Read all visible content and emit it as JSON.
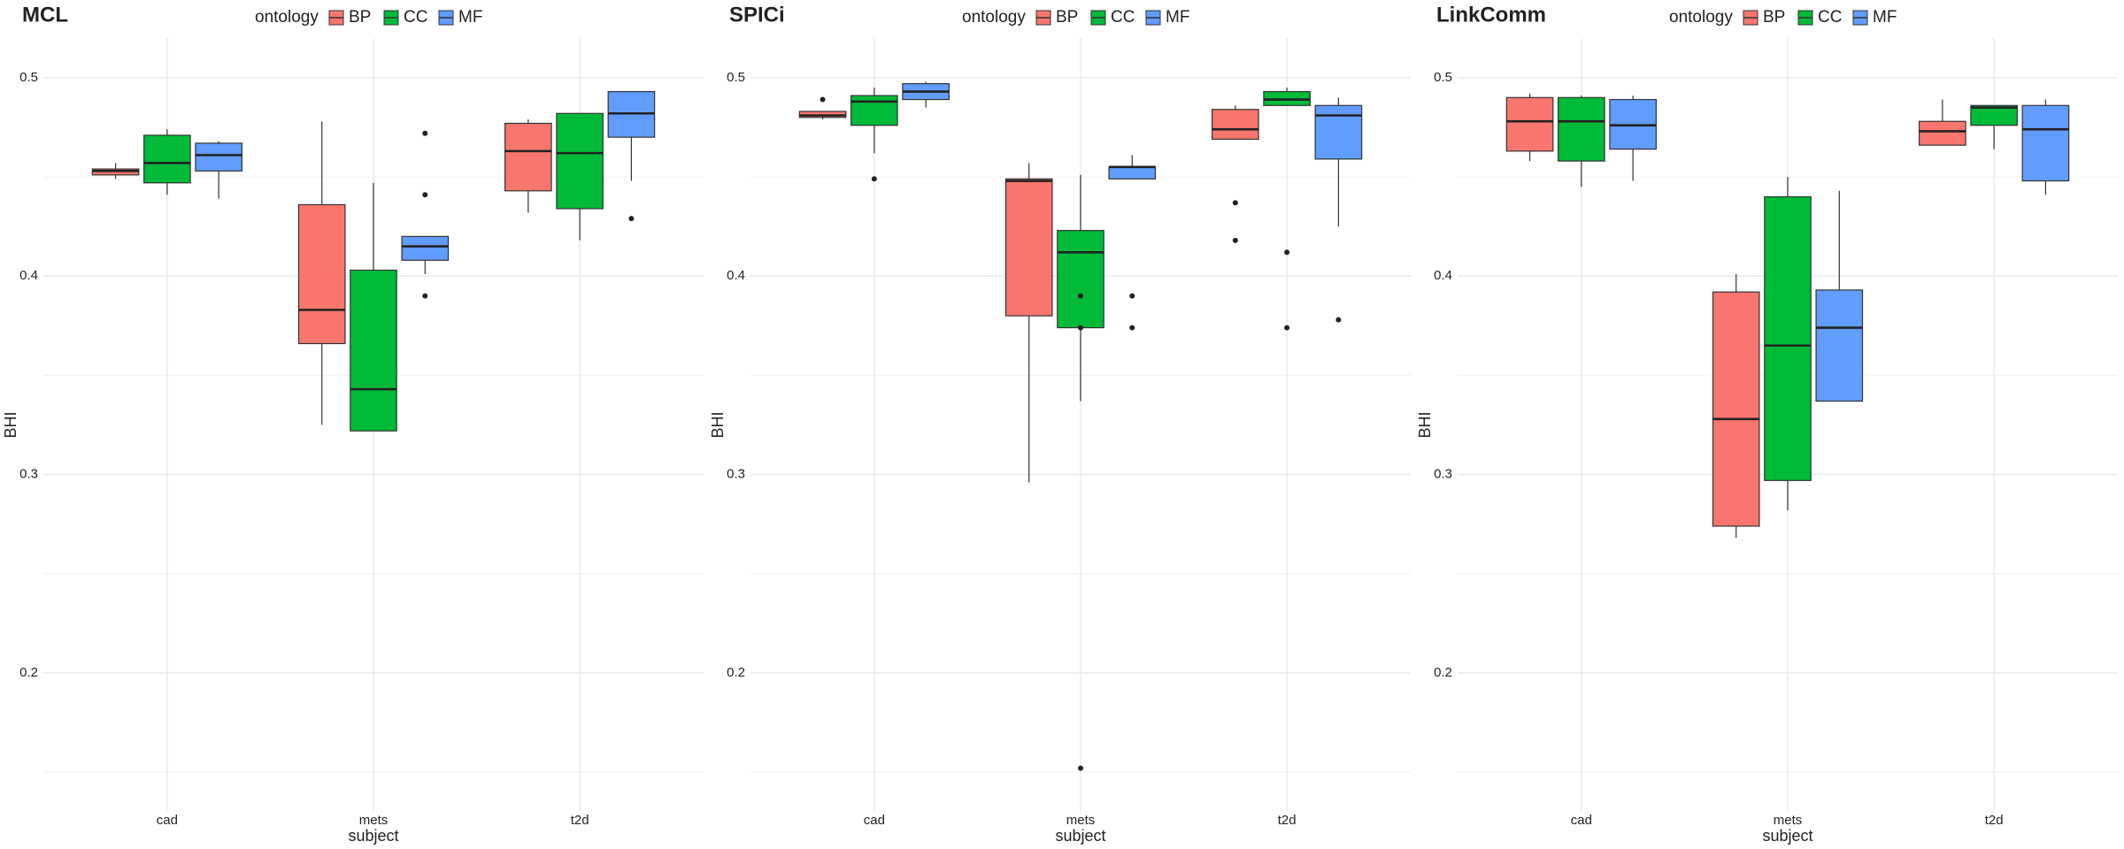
{
  "chart_data": [
    {
      "type": "box",
      "title": "MCL",
      "x_label": "subject",
      "y_label": "BHI",
      "legend_title": "ontology",
      "legend": "top",
      "categories": [
        "cad",
        "mets",
        "t2d"
      ],
      "ylim": [
        0.13,
        0.52
      ],
      "yticks": [
        0.2,
        0.3,
        0.4,
        0.5
      ],
      "grid": true,
      "series": [
        {
          "name": "BP",
          "color": "#F8766D",
          "boxes": [
            {
              "min": 0.449,
              "q1": 0.451,
              "median": 0.453,
              "q3": 0.454,
              "max": 0.457,
              "outliers": []
            },
            {
              "min": 0.325,
              "q1": 0.366,
              "median": 0.383,
              "q3": 0.436,
              "max": 0.478,
              "outliers": []
            },
            {
              "min": 0.432,
              "q1": 0.443,
              "median": 0.463,
              "q3": 0.477,
              "max": 0.479,
              "outliers": []
            }
          ]
        },
        {
          "name": "CC",
          "color": "#00BA38",
          "boxes": [
            {
              "min": 0.441,
              "q1": 0.447,
              "median": 0.457,
              "q3": 0.471,
              "max": 0.474,
              "outliers": []
            },
            {
              "min": 0.322,
              "q1": 0.322,
              "median": 0.343,
              "q3": 0.403,
              "max": 0.447,
              "outliers": []
            },
            {
              "min": 0.418,
              "q1": 0.434,
              "median": 0.462,
              "q3": 0.482,
              "max": 0.482,
              "outliers": []
            }
          ]
        },
        {
          "name": "MF",
          "color": "#619CFF",
          "boxes": [
            {
              "min": 0.439,
              "q1": 0.453,
              "median": 0.461,
              "q3": 0.467,
              "max": 0.468,
              "outliers": []
            },
            {
              "min": 0.401,
              "q1": 0.408,
              "median": 0.415,
              "q3": 0.42,
              "max": 0.42,
              "outliers": [
                0.472,
                0.441,
                0.39
              ]
            },
            {
              "min": 0.448,
              "q1": 0.47,
              "median": 0.482,
              "q3": 0.493,
              "max": 0.493,
              "outliers": [
                0.429
              ]
            }
          ]
        }
      ]
    },
    {
      "type": "box",
      "title": "SPICi",
      "x_label": "subject",
      "y_label": "BHI",
      "legend_title": "ontology",
      "legend": "top",
      "categories": [
        "cad",
        "mets",
        "t2d"
      ],
      "ylim": [
        0.13,
        0.52
      ],
      "yticks": [
        0.2,
        0.3,
        0.4,
        0.5
      ],
      "grid": true,
      "series": [
        {
          "name": "BP",
          "color": "#F8766D",
          "boxes": [
            {
              "min": 0.479,
              "q1": 0.48,
              "median": 0.481,
              "q3": 0.483,
              "max": 0.483,
              "outliers": [
                0.489
              ]
            },
            {
              "min": 0.296,
              "q1": 0.38,
              "median": 0.448,
              "q3": 0.449,
              "max": 0.457,
              "outliers": []
            },
            {
              "min": 0.469,
              "q1": 0.469,
              "median": 0.474,
              "q3": 0.484,
              "max": 0.486,
              "outliers": [
                0.437,
                0.418
              ]
            }
          ]
        },
        {
          "name": "CC",
          "color": "#00BA38",
          "boxes": [
            {
              "min": 0.462,
              "q1": 0.476,
              "median": 0.488,
              "q3": 0.491,
              "max": 0.495,
              "outliers": [
                0.449
              ]
            },
            {
              "min": 0.337,
              "q1": 0.374,
              "median": 0.412,
              "q3": 0.423,
              "max": 0.451,
              "outliers": [
                0.39,
                0.374,
                0.152
              ]
            },
            {
              "min": 0.486,
              "q1": 0.486,
              "median": 0.489,
              "q3": 0.493,
              "max": 0.495,
              "outliers": [
                0.412,
                0.374
              ]
            }
          ]
        },
        {
          "name": "MF",
          "color": "#619CFF",
          "boxes": [
            {
              "min": 0.485,
              "q1": 0.489,
              "median": 0.493,
              "q3": 0.497,
              "max": 0.498,
              "outliers": []
            },
            {
              "min": 0.449,
              "q1": 0.449,
              "median": 0.455,
              "q3": 0.455,
              "max": 0.461,
              "outliers": [
                0.39,
                0.374
              ]
            },
            {
              "min": 0.425,
              "q1": 0.459,
              "median": 0.481,
              "q3": 0.486,
              "max": 0.49,
              "outliers": [
                0.378
              ]
            }
          ]
        }
      ]
    },
    {
      "type": "box",
      "title": "LinkComm",
      "x_label": "subject",
      "y_label": "BHI",
      "legend_title": "ontology",
      "legend": "top",
      "categories": [
        "cad",
        "mets",
        "t2d"
      ],
      "ylim": [
        0.13,
        0.52
      ],
      "yticks": [
        0.2,
        0.3,
        0.4,
        0.5
      ],
      "grid": true,
      "series": [
        {
          "name": "BP",
          "color": "#F8766D",
          "boxes": [
            {
              "min": 0.458,
              "q1": 0.463,
              "median": 0.478,
              "q3": 0.49,
              "max": 0.492,
              "outliers": []
            },
            {
              "min": 0.268,
              "q1": 0.274,
              "median": 0.328,
              "q3": 0.392,
              "max": 0.401,
              "outliers": []
            },
            {
              "min": 0.466,
              "q1": 0.466,
              "median": 0.473,
              "q3": 0.478,
              "max": 0.489,
              "outliers": []
            }
          ]
        },
        {
          "name": "CC",
          "color": "#00BA38",
          "boxes": [
            {
              "min": 0.445,
              "q1": 0.458,
              "median": 0.478,
              "q3": 0.49,
              "max": 0.491,
              "outliers": []
            },
            {
              "min": 0.282,
              "q1": 0.297,
              "median": 0.365,
              "q3": 0.44,
              "max": 0.45,
              "outliers": []
            },
            {
              "min": 0.464,
              "q1": 0.476,
              "median": 0.485,
              "q3": 0.486,
              "max": 0.486,
              "outliers": []
            }
          ]
        },
        {
          "name": "MF",
          "color": "#619CFF",
          "boxes": [
            {
              "min": 0.448,
              "q1": 0.464,
              "median": 0.476,
              "q3": 0.489,
              "max": 0.491,
              "outliers": []
            },
            {
              "min": 0.337,
              "q1": 0.337,
              "median": 0.374,
              "q3": 0.393,
              "max": 0.443,
              "outliers": []
            },
            {
              "min": 0.441,
              "q1": 0.448,
              "median": 0.474,
              "q3": 0.486,
              "max": 0.489,
              "outliers": []
            }
          ]
        }
      ]
    }
  ]
}
